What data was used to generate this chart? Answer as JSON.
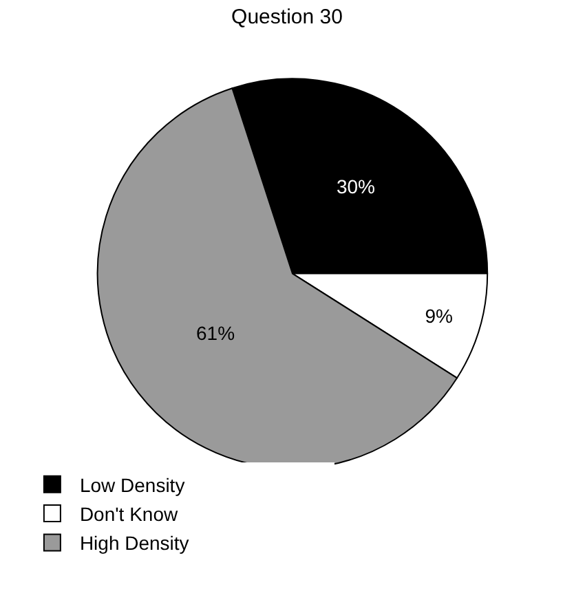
{
  "chart_data": {
    "type": "pie",
    "title": "Question 30",
    "categories": [
      "Low Density",
      "Don't Know",
      "High Density"
    ],
    "values": [
      30,
      9,
      61
    ],
    "colors": [
      "#000000",
      "#ffffff",
      "#9a9a9a"
    ],
    "value_labels": [
      "30%",
      "9%",
      "61%"
    ],
    "legend": "bottom"
  }
}
